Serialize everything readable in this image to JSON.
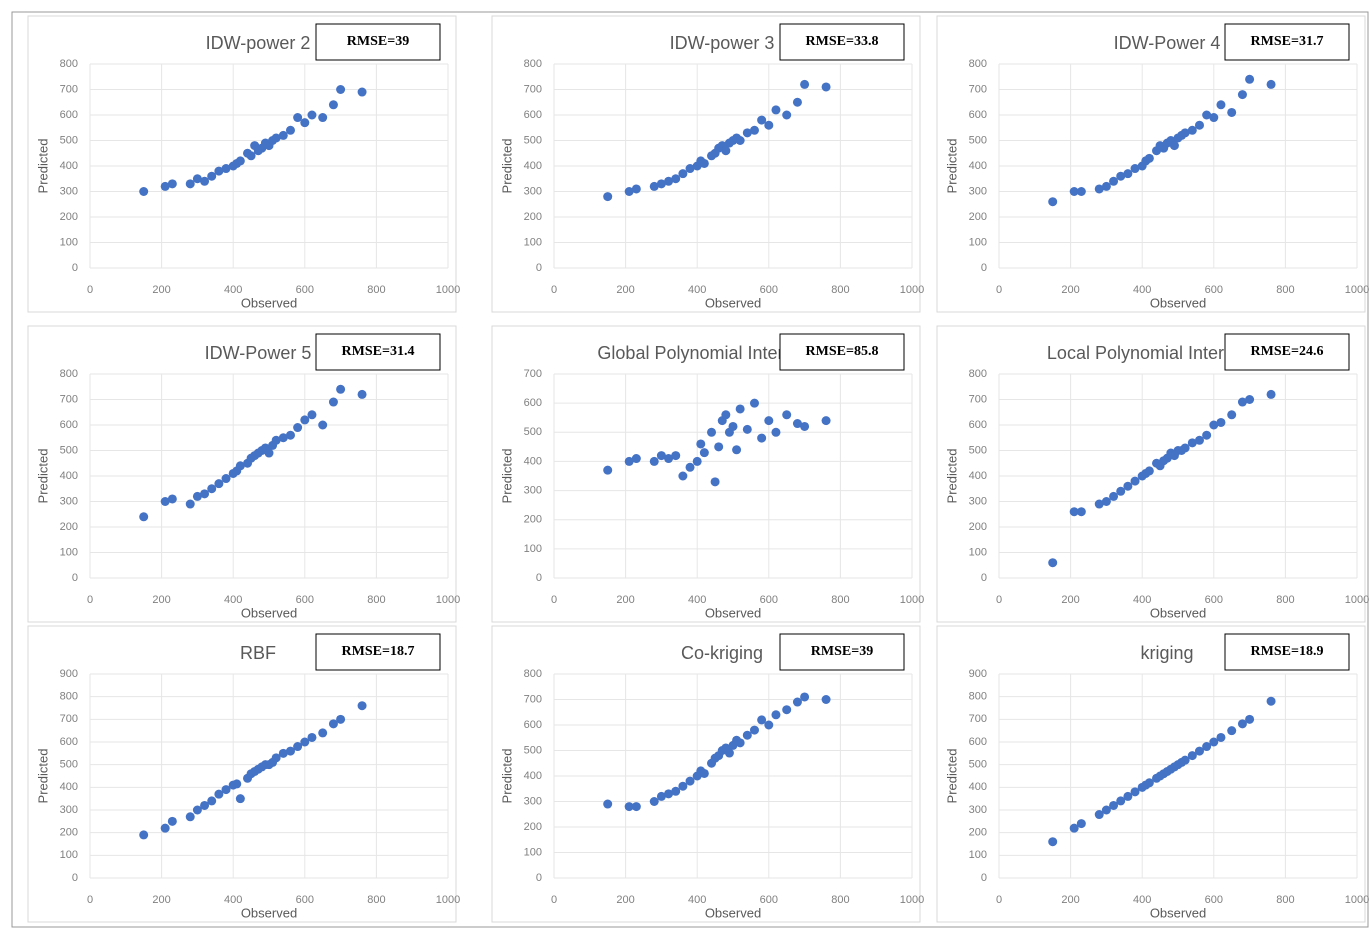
{
  "chart_data": [
    {
      "type": "scatter",
      "title": "IDW-power 2",
      "annotation": "RMSE=39",
      "x_label": "Observed",
      "y_label": "Predicted",
      "color": "#4472c4",
      "grid": true,
      "xlim": [
        0,
        1000
      ],
      "xticks": [
        0,
        200,
        400,
        600,
        800,
        1000
      ],
      "ylim": [
        0,
        800
      ],
      "yticks": [
        0,
        100,
        200,
        300,
        400,
        500,
        600,
        700,
        800
      ],
      "x": [
        150,
        210,
        230,
        280,
        300,
        320,
        340,
        360,
        380,
        400,
        410,
        420,
        440,
        450,
        460,
        470,
        480,
        490,
        500,
        510,
        520,
        540,
        560,
        580,
        600,
        620,
        650,
        680,
        700,
        760
      ],
      "values": [
        300,
        320,
        330,
        330,
        350,
        340,
        360,
        380,
        390,
        400,
        410,
        420,
        450,
        440,
        480,
        460,
        470,
        490,
        480,
        500,
        510,
        520,
        540,
        590,
        570,
        600,
        590,
        640,
        700,
        690
      ]
    },
    {
      "type": "scatter",
      "title": "IDW-power 3",
      "annotation": "RMSE=33.8",
      "x_label": "Observed",
      "y_label": "Predicted",
      "color": "#4472c4",
      "grid": true,
      "xlim": [
        0,
        1000
      ],
      "xticks": [
        0,
        200,
        400,
        600,
        800,
        1000
      ],
      "ylim": [
        0,
        800
      ],
      "yticks": [
        0,
        100,
        200,
        300,
        400,
        500,
        600,
        700,
        800
      ],
      "x": [
        150,
        210,
        230,
        280,
        300,
        320,
        340,
        360,
        380,
        400,
        410,
        420,
        440,
        450,
        460,
        470,
        480,
        490,
        500,
        510,
        520,
        540,
        560,
        580,
        600,
        620,
        650,
        680,
        700,
        760
      ],
      "values": [
        280,
        300,
        310,
        320,
        330,
        340,
        350,
        370,
        390,
        400,
        420,
        410,
        440,
        450,
        470,
        480,
        460,
        490,
        500,
        510,
        500,
        530,
        540,
        580,
        560,
        620,
        600,
        650,
        720,
        710
      ]
    },
    {
      "type": "scatter",
      "title": "IDW-Power 4",
      "annotation": "RMSE=31.7",
      "x_label": "Observed",
      "y_label": "Predicted",
      "color": "#4472c4",
      "grid": true,
      "xlim": [
        0,
        1000
      ],
      "xticks": [
        0,
        200,
        400,
        600,
        800,
        1000
      ],
      "ylim": [
        0,
        800
      ],
      "yticks": [
        0,
        100,
        200,
        300,
        400,
        500,
        600,
        700,
        800
      ],
      "x": [
        150,
        210,
        230,
        280,
        300,
        320,
        340,
        360,
        380,
        400,
        410,
        420,
        440,
        450,
        460,
        470,
        480,
        490,
        500,
        510,
        520,
        540,
        560,
        580,
        600,
        620,
        650,
        680,
        700,
        760
      ],
      "values": [
        260,
        300,
        300,
        310,
        320,
        340,
        360,
        370,
        390,
        400,
        420,
        430,
        460,
        480,
        470,
        490,
        500,
        480,
        510,
        520,
        530,
        540,
        560,
        600,
        590,
        640,
        610,
        680,
        740,
        720
      ]
    },
    {
      "type": "scatter",
      "title": "IDW-Power 5",
      "annotation": "RMSE=31.4",
      "x_label": "Observed",
      "y_label": "Predicted",
      "color": "#4472c4",
      "grid": true,
      "xlim": [
        0,
        1000
      ],
      "xticks": [
        0,
        200,
        400,
        600,
        800,
        1000
      ],
      "ylim": [
        0,
        800
      ],
      "yticks": [
        0,
        100,
        200,
        300,
        400,
        500,
        600,
        700,
        800
      ],
      "x": [
        150,
        210,
        230,
        280,
        300,
        320,
        340,
        360,
        380,
        400,
        410,
        420,
        440,
        450,
        460,
        470,
        480,
        490,
        500,
        510,
        520,
        540,
        560,
        580,
        600,
        620,
        650,
        680,
        700,
        760
      ],
      "values": [
        240,
        300,
        310,
        290,
        320,
        330,
        350,
        370,
        390,
        410,
        420,
        440,
        450,
        470,
        480,
        490,
        500,
        510,
        490,
        520,
        540,
        550,
        560,
        590,
        620,
        640,
        600,
        690,
        740,
        720
      ]
    },
    {
      "type": "scatter",
      "title": "Global Polynomial Interpolation",
      "annotation": "RMSE=85.8",
      "x_label": "Observed",
      "y_label": "Predicted",
      "color": "#4472c4",
      "grid": true,
      "xlim": [
        0,
        1000
      ],
      "xticks": [
        0,
        200,
        400,
        600,
        800,
        1000
      ],
      "ylim": [
        0,
        700
      ],
      "yticks": [
        0,
        100,
        200,
        300,
        400,
        500,
        600,
        700
      ],
      "x": [
        150,
        210,
        230,
        280,
        300,
        320,
        340,
        360,
        380,
        400,
        410,
        420,
        440,
        450,
        460,
        470,
        480,
        490,
        500,
        510,
        520,
        540,
        560,
        580,
        600,
        620,
        650,
        680,
        700,
        760
      ],
      "values": [
        370,
        400,
        410,
        400,
        420,
        410,
        420,
        350,
        380,
        400,
        460,
        430,
        500,
        330,
        450,
        540,
        560,
        500,
        520,
        440,
        580,
        510,
        600,
        480,
        540,
        500,
        560,
        530,
        520,
        540
      ]
    },
    {
      "type": "scatter",
      "title": "Local Polynomial Interpolation",
      "annotation": "RMSE=24.6",
      "x_label": "Observed",
      "y_label": "Predicted",
      "color": "#4472c4",
      "grid": true,
      "xlim": [
        0,
        1000
      ],
      "xticks": [
        0,
        200,
        400,
        600,
        800,
        1000
      ],
      "ylim": [
        0,
        800
      ],
      "yticks": [
        0,
        100,
        200,
        300,
        400,
        500,
        600,
        700,
        800
      ],
      "x": [
        150,
        210,
        230,
        280,
        300,
        320,
        340,
        360,
        380,
        400,
        410,
        420,
        440,
        450,
        460,
        470,
        480,
        490,
        500,
        510,
        520,
        540,
        560,
        580,
        600,
        620,
        650,
        680,
        700,
        760
      ],
      "values": [
        60,
        260,
        260,
        290,
        300,
        320,
        340,
        360,
        380,
        400,
        410,
        420,
        450,
        440,
        460,
        470,
        490,
        480,
        500,
        500,
        510,
        530,
        540,
        560,
        600,
        610,
        640,
        690,
        700,
        720
      ]
    },
    {
      "type": "scatter",
      "title": "RBF",
      "annotation": "RMSE=18.7",
      "x_label": "Observed",
      "y_label": "Predicted",
      "color": "#4472c4",
      "grid": true,
      "xlim": [
        0,
        1000
      ],
      "xticks": [
        0,
        200,
        400,
        600,
        800,
        1000
      ],
      "ylim": [
        0,
        900
      ],
      "yticks": [
        0,
        100,
        200,
        300,
        400,
        500,
        600,
        700,
        800,
        900
      ],
      "x": [
        150,
        210,
        230,
        280,
        300,
        320,
        340,
        360,
        380,
        400,
        410,
        420,
        440,
        450,
        460,
        470,
        480,
        490,
        500,
        510,
        520,
        540,
        560,
        580,
        600,
        620,
        650,
        680,
        700,
        760
      ],
      "values": [
        190,
        220,
        250,
        270,
        300,
        320,
        340,
        370,
        390,
        410,
        415,
        350,
        440,
        460,
        470,
        480,
        490,
        500,
        500,
        510,
        530,
        550,
        560,
        580,
        600,
        620,
        640,
        680,
        700,
        760
      ]
    },
    {
      "type": "scatter",
      "title": "Co-kriging",
      "annotation": "RMSE=39",
      "x_label": "Observed",
      "y_label": "Predicted",
      "color": "#4472c4",
      "grid": true,
      "xlim": [
        0,
        1000
      ],
      "xticks": [
        0,
        200,
        400,
        600,
        800,
        1000
      ],
      "ylim": [
        0,
        800
      ],
      "yticks": [
        0,
        100,
        200,
        300,
        400,
        500,
        600,
        700,
        800
      ],
      "x": [
        150,
        210,
        230,
        280,
        300,
        320,
        340,
        360,
        380,
        400,
        410,
        420,
        440,
        450,
        460,
        470,
        480,
        490,
        500,
        510,
        520,
        540,
        560,
        580,
        600,
        620,
        650,
        680,
        700,
        760
      ],
      "values": [
        290,
        280,
        280,
        300,
        320,
        330,
        340,
        360,
        380,
        400,
        420,
        410,
        450,
        470,
        480,
        500,
        510,
        490,
        520,
        540,
        530,
        560,
        580,
        620,
        600,
        640,
        660,
        690,
        710,
        700
      ]
    },
    {
      "type": "scatter",
      "title": "kriging",
      "annotation": "RMSE=18.9",
      "x_label": "Observed",
      "y_label": "Predicted",
      "color": "#4472c4",
      "grid": true,
      "xlim": [
        0,
        1000
      ],
      "xticks": [
        0,
        200,
        400,
        600,
        800,
        1000
      ],
      "ylim": [
        0,
        900
      ],
      "yticks": [
        0,
        100,
        200,
        300,
        400,
        500,
        600,
        700,
        800,
        900
      ],
      "x": [
        150,
        210,
        230,
        280,
        300,
        320,
        340,
        360,
        380,
        400,
        410,
        420,
        440,
        450,
        460,
        470,
        480,
        490,
        500,
        510,
        520,
        540,
        560,
        580,
        600,
        620,
        650,
        680,
        700,
        760
      ],
      "values": [
        160,
        220,
        240,
        280,
        300,
        320,
        340,
        360,
        380,
        400,
        410,
        420,
        440,
        450,
        460,
        470,
        480,
        490,
        500,
        510,
        520,
        540,
        560,
        580,
        600,
        620,
        650,
        680,
        700,
        780
      ]
    }
  ]
}
